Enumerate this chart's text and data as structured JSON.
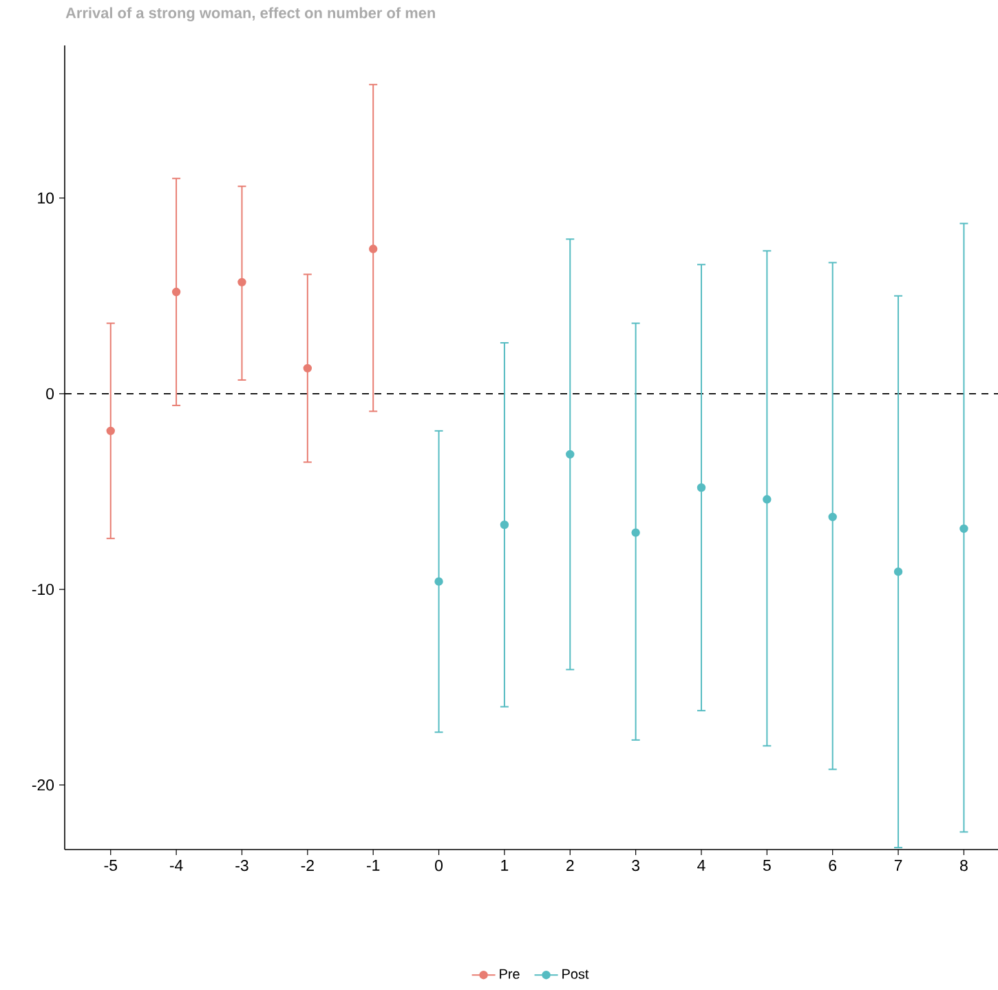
{
  "chart_data": {
    "type": "scatter",
    "title": "Arrival of a strong woman, effect on number of men",
    "series": [
      {
        "name": "Pre",
        "color": "#e87d72",
        "x": [
          -5,
          -4,
          -3,
          -2,
          -1
        ],
        "values": [
          -1.9,
          5.2,
          5.7,
          1.3,
          7.4
        ],
        "errors": [
          [
            -7.4,
            3.6
          ],
          [
            -0.6,
            11.0
          ],
          [
            0.7,
            10.6
          ],
          [
            -3.5,
            6.1
          ],
          [
            -0.9,
            15.8
          ]
        ]
      },
      {
        "name": "Post",
        "color": "#56bcc2",
        "x": [
          0,
          1,
          2,
          3,
          4,
          5,
          6,
          7,
          8
        ],
        "values": [
          -9.6,
          -6.7,
          -3.1,
          -7.1,
          -4.8,
          -5.4,
          -6.3,
          -9.1,
          -6.9
        ],
        "errors": [
          [
            -17.3,
            -1.9
          ],
          [
            -16.0,
            2.6
          ],
          [
            -14.1,
            7.9
          ],
          [
            -17.7,
            3.6
          ],
          [
            -16.2,
            6.6
          ],
          [
            -18.0,
            7.3
          ],
          [
            -19.2,
            6.7
          ],
          [
            -23.2,
            5.0
          ],
          [
            -22.4,
            8.7
          ]
        ]
      }
    ],
    "xlim": [
      -5.7,
      8.52
    ],
    "ylim": [
      -23.3,
      17.8
    ],
    "xticks": [
      -5,
      -4,
      -3,
      -2,
      -1,
      0,
      1,
      2,
      3,
      4,
      5,
      6,
      7,
      8
    ],
    "yticks": [
      -20,
      -10,
      0,
      10
    ],
    "ref_lines": [
      {
        "axis": "y",
        "value": 0,
        "color": "#000000",
        "line_style": "dashed"
      }
    ],
    "legend": "bottom",
    "marker": "circle",
    "grid": false
  }
}
